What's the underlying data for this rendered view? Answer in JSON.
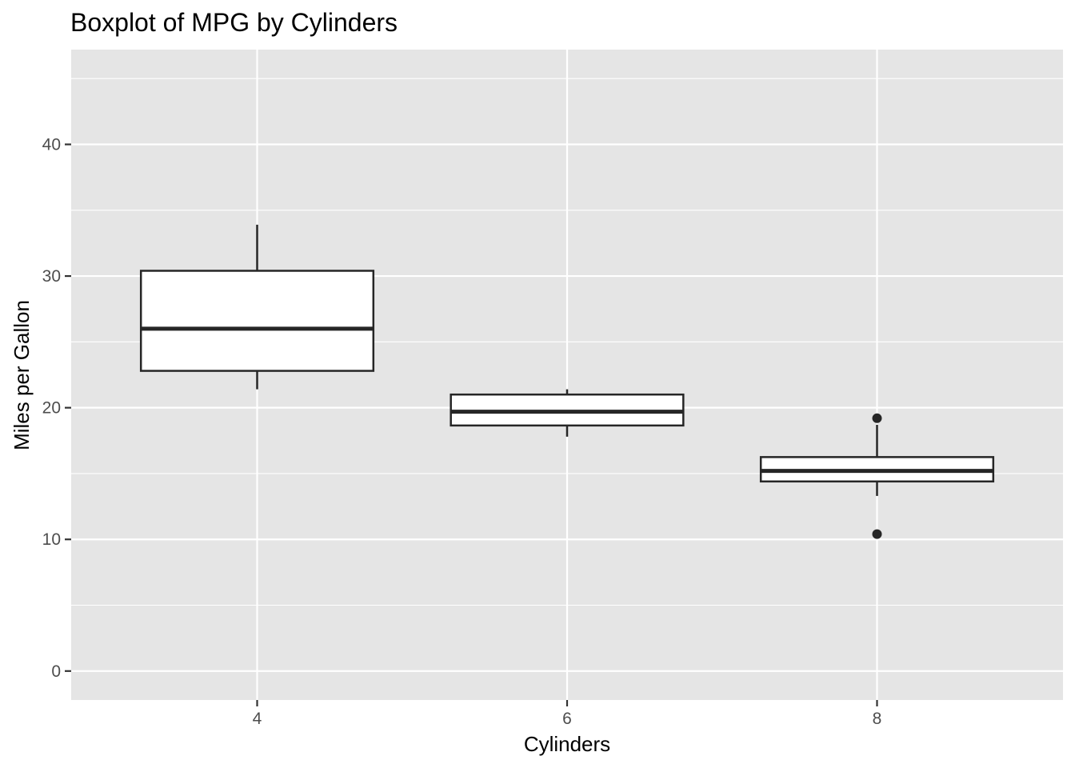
{
  "chart_data": {
    "type": "boxplot",
    "title": "Boxplot of MPG by Cylinders",
    "xlabel": "Cylinders",
    "ylabel": "Miles per Gallon",
    "categories": [
      "4",
      "6",
      "8"
    ],
    "ylim": [
      -2.2,
      47.2
    ],
    "y_ticks": [
      0,
      10,
      20,
      30,
      40
    ],
    "y_minor_ticks": [
      5,
      15,
      25,
      35,
      45
    ],
    "grid": true,
    "panel_background": "#e5e5e5",
    "box_fill": "#ffffff",
    "line_color": "#262626",
    "boxes": [
      {
        "category": "4",
        "whisker_low": 21.4,
        "q1": 22.8,
        "median": 26.0,
        "q3": 30.4,
        "whisker_high": 33.9,
        "outliers": []
      },
      {
        "category": "6",
        "whisker_low": 17.8,
        "q1": 18.65,
        "median": 19.7,
        "q3": 21.0,
        "whisker_high": 21.4,
        "outliers": []
      },
      {
        "category": "8",
        "whisker_low": 13.3,
        "q1": 14.4,
        "median": 15.2,
        "q3": 16.25,
        "whisker_high": 18.7,
        "outliers": [
          10.4,
          19.2
        ]
      }
    ]
  }
}
